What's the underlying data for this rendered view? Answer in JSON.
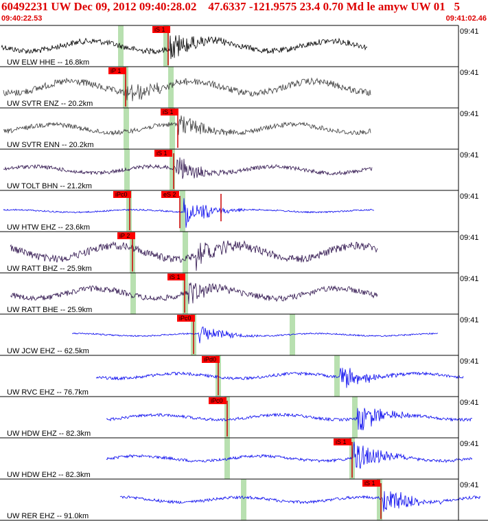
{
  "header": {
    "title": "60492231 UW Dec 09, 2012 09:40:28.02    47.6337 -121.9575 23.4 0.70 Md le amyw UW 01   5",
    "start_time": "09:40:22.53",
    "end_time": "09:41:02.46"
  },
  "colors": {
    "header_text": "#dd0000",
    "pick_box": "#ff0000",
    "window_band": "#b8e0b0"
  },
  "traces": [
    {
      "label": "UW ELW HHE -- 16.8km",
      "time": "09:41",
      "pick": "iS 1",
      "color": "#000000"
    },
    {
      "label": "UW SVTR ENZ -- 20.2km",
      "time": "09:41",
      "pick": "iP 1",
      "color": "#3a3a3a"
    },
    {
      "label": "UW SVTR ENN -- 20.2km",
      "time": "09:41",
      "pick": "iS 1",
      "color": "#3a3a3a"
    },
    {
      "label": "UW TOLT BHN -- 21.2km",
      "time": "09:41",
      "pick": "iS 1",
      "color": "#2b0f4a"
    },
    {
      "label": "UW HTW EHZ -- 23.6km",
      "time": "09:41",
      "pick": "iPc0",
      "pick2": "eS 2",
      "color": "#0000ee"
    },
    {
      "label": "UW RATT BHZ -- 25.9km",
      "time": "09:41",
      "pick": "iP 2",
      "color": "#2b0f4a"
    },
    {
      "label": "UW RATT BHE -- 25.9km",
      "time": "09:41",
      "pick": "iS 1",
      "color": "#2b0f4a"
    },
    {
      "label": "UW JCW EHZ -- 62.5km",
      "time": "09:41",
      "pick": "iPc0",
      "color": "#0000ee"
    },
    {
      "label": "UW RVC EHZ -- 76.7km",
      "time": "09:41",
      "pick": "iPd0",
      "color": "#0000ee"
    },
    {
      "label": "UW HDW EHZ -- 82.3km",
      "time": "09:41",
      "pick": "iPc0",
      "color": "#0000ee"
    },
    {
      "label": "UW HDW EH2 -- 82.3km",
      "time": "09:41",
      "pick": "iS 1",
      "color": "#0000ee"
    },
    {
      "label": "UW RER EHZ -- 91.0km",
      "time": "09:41",
      "pick": "iS 1",
      "color": "#0000ee"
    }
  ]
}
